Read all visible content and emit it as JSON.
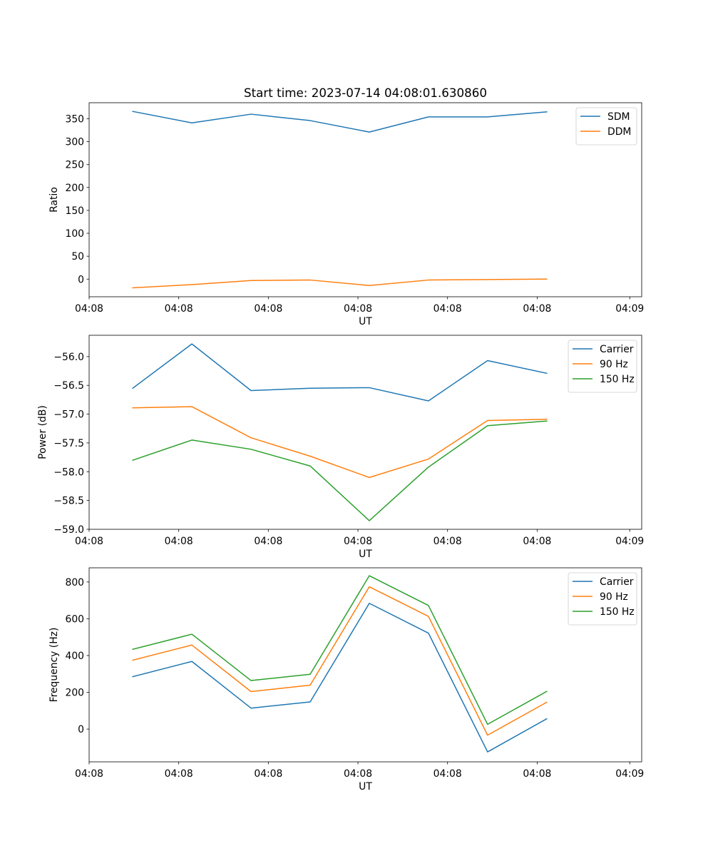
{
  "chart_data": [
    {
      "type": "line",
      "title": "Start time: 2023-07-14 04:08:01.630860",
      "xlabel": "UT",
      "ylabel": "Ratio",
      "xlim": [
        0,
        9.25
      ],
      "xticks": [
        0,
        1.5,
        3,
        4.5,
        6,
        7.5,
        9.05
      ],
      "xtick_labels": [
        "04:08",
        "04:08",
        "04:08",
        "04:08",
        "04:08",
        "04:08",
        "04:09"
      ],
      "ylim": [
        -38.5,
        385
      ],
      "yticks": [
        0,
        50,
        100,
        150,
        200,
        250,
        300,
        350
      ],
      "ytick_labels": [
        "0",
        "50",
        "100",
        "150",
        "200",
        "250",
        "300",
        "350"
      ],
      "x": [
        0.73,
        1.72,
        2.71,
        3.7,
        4.69,
        5.68,
        6.67,
        7.66
      ],
      "series": [
        {
          "name": "SDM",
          "color": "#1f77b4",
          "values": [
            366,
            341,
            360,
            346,
            321,
            354,
            354,
            365
          ]
        },
        {
          "name": "DDM",
          "color": "#ff7f0e",
          "values": [
            -19,
            -12,
            -3,
            -2,
            -14,
            -2,
            -1,
            0
          ]
        }
      ],
      "legend": "top-right"
    },
    {
      "type": "line",
      "title": "",
      "xlabel": "UT",
      "ylabel": "Power (dB)",
      "xlim": [
        0,
        9.25
      ],
      "xticks": [
        0,
        1.5,
        3,
        4.5,
        6,
        7.5,
        9.05
      ],
      "xtick_labels": [
        "04:08",
        "04:08",
        "04:08",
        "04:08",
        "04:08",
        "04:08",
        "04:09"
      ],
      "ylim": [
        -59.0,
        -55.63
      ],
      "yticks": [
        -59.0,
        -58.5,
        -58.0,
        -57.5,
        -57.0,
        -56.5,
        -56.0
      ],
      "ytick_labels": [
        "−59.0",
        "−58.5",
        "−58.0",
        "−57.5",
        "−57.0",
        "−56.5",
        "−56.0"
      ],
      "x": [
        0.73,
        1.72,
        2.71,
        3.7,
        4.69,
        5.68,
        6.67,
        7.66
      ],
      "series": [
        {
          "name": "Carrier",
          "color": "#1f77b4",
          "values": [
            -56.55,
            -55.78,
            -56.59,
            -56.55,
            -56.54,
            -56.77,
            -56.07,
            -56.29
          ]
        },
        {
          "name": "90 Hz",
          "color": "#ff7f0e",
          "values": [
            -56.89,
            -56.87,
            -57.41,
            -57.73,
            -58.1,
            -57.78,
            -57.11,
            -57.09
          ]
        },
        {
          "name": "150 Hz",
          "color": "#2ca02c",
          "values": [
            -57.8,
            -57.45,
            -57.61,
            -57.9,
            -58.85,
            -57.92,
            -57.2,
            -57.12
          ]
        }
      ],
      "legend": "top-right"
    },
    {
      "type": "line",
      "title": "",
      "xlabel": "UT",
      "ylabel": "Frequency (Hz)",
      "xlim": [
        0,
        9.25
      ],
      "xticks": [
        0,
        1.5,
        3,
        4.5,
        6,
        7.5,
        9.05
      ],
      "xtick_labels": [
        "04:08",
        "04:08",
        "04:08",
        "04:08",
        "04:08",
        "04:08",
        "04:09"
      ],
      "ylim": [
        -178,
        877
      ],
      "yticks": [
        0,
        200,
        400,
        600,
        800
      ],
      "ytick_labels": [
        "0",
        "200",
        "400",
        "600",
        "800"
      ],
      "x": [
        0.73,
        1.72,
        2.71,
        3.7,
        4.69,
        5.68,
        6.67,
        7.66
      ],
      "series": [
        {
          "name": "Carrier",
          "color": "#1f77b4",
          "values": [
            285,
            368,
            114,
            148,
            684,
            522,
            -124,
            56
          ]
        },
        {
          "name": "90 Hz",
          "color": "#ff7f0e",
          "values": [
            375,
            457,
            204,
            239,
            774,
            613,
            -33,
            146
          ]
        },
        {
          "name": "150 Hz",
          "color": "#2ca02c",
          "values": [
            434,
            516,
            264,
            298,
            834,
            672,
            26,
            205
          ]
        }
      ],
      "legend": "top-right"
    }
  ]
}
